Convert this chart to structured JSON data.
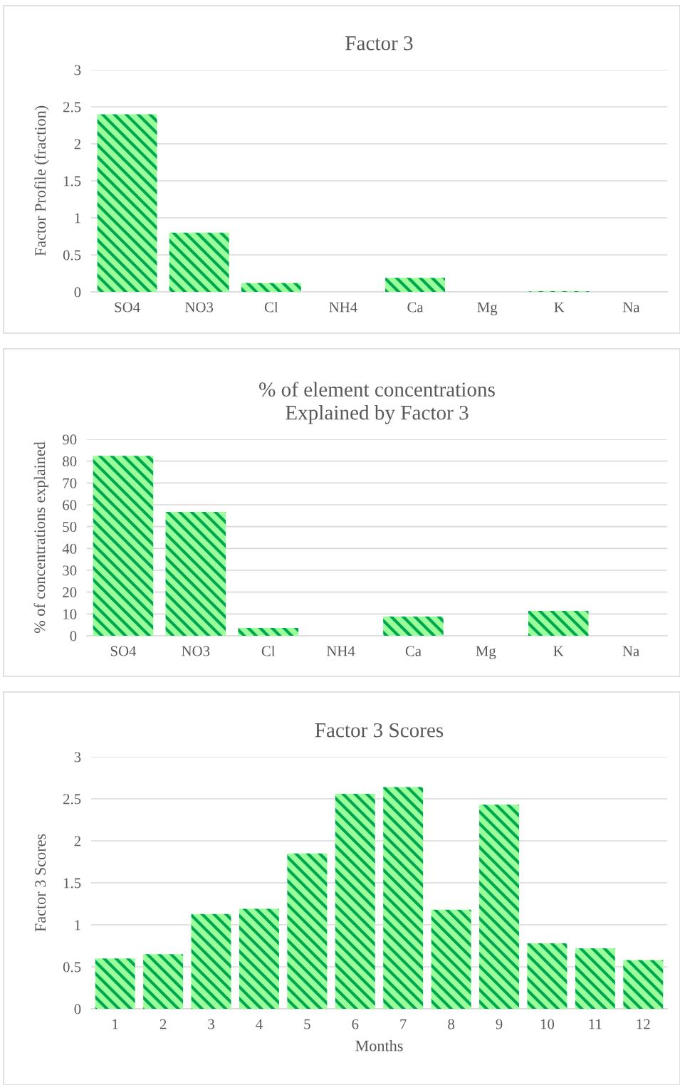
{
  "chart_data": [
    {
      "type": "bar",
      "title": "Factor 3",
      "ylabel": "Factor Profile (fraction)",
      "categories": [
        "SO4",
        "NO3",
        "Cl",
        "NH4",
        "Ca",
        "Mg",
        "K",
        "Na"
      ],
      "values": [
        2.4,
        0.8,
        0.12,
        0,
        0.19,
        0,
        0.01,
        0
      ],
      "color": "#99ff99",
      "ylim": [
        0,
        3
      ],
      "yticks": [
        0,
        0.5,
        1,
        1.5,
        2,
        2.5,
        3
      ],
      "grid": "y"
    },
    {
      "type": "bar",
      "title": "% of element concentrations\nExplained by Factor 3",
      "ylabel": "% of concentrations explained",
      "categories": [
        "SO4",
        "NO3",
        "Cl",
        "NH4",
        "Ca",
        "Mg",
        "K",
        "Na"
      ],
      "values": [
        82.4,
        56.7,
        3.6,
        0,
        8.8,
        0,
        11.4,
        0
      ],
      "color": "#99ff99",
      "ylim": [
        0,
        90
      ],
      "yticks": [
        0,
        10,
        20,
        30,
        40,
        50,
        60,
        70,
        80,
        90
      ],
      "grid": "y"
    },
    {
      "type": "bar",
      "title": "Factor 3 Scores",
      "xlabel": "Months",
      "ylabel": "Factor 3 Scores",
      "categories": [
        "1",
        "2",
        "3",
        "4",
        "5",
        "6",
        "7",
        "8",
        "9",
        "10",
        "11",
        "12"
      ],
      "values": [
        0.6,
        0.65,
        1.13,
        1.19,
        1.85,
        2.56,
        2.64,
        1.18,
        2.43,
        0.78,
        0.72,
        0.58
      ],
      "color": "#99ff99",
      "ylim": [
        0,
        3
      ],
      "yticks": [
        0,
        0.5,
        1,
        1.5,
        2,
        2.5,
        3
      ],
      "grid": "y"
    }
  ]
}
